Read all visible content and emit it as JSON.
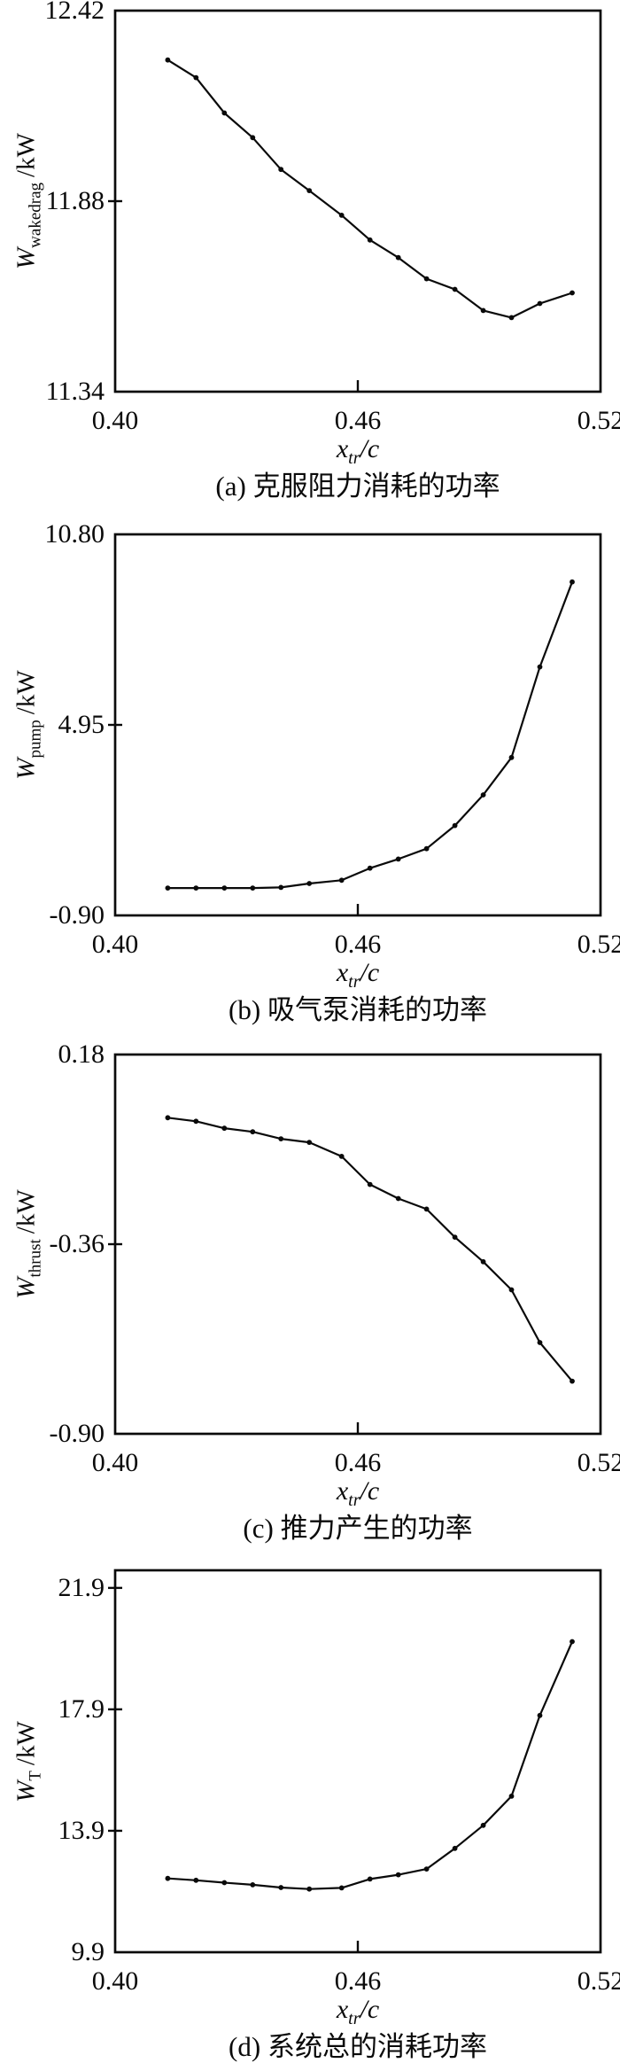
{
  "page": {
    "background": "#ffffff",
    "ink": "#0a0a0a"
  },
  "chart_data": [
    {
      "type": "line",
      "title": "(a) 克服阻力消耗的功率",
      "xlabel": {
        "main": "x",
        "sub": "tr",
        "unit": "/c"
      },
      "ylabel": {
        "main": "W",
        "sub": "wakedrag",
        "unit": "/kW"
      },
      "x": [
        0.413,
        0.42,
        0.427,
        0.434,
        0.441,
        0.448,
        0.456,
        0.463,
        0.47,
        0.477,
        0.484,
        0.491,
        0.498,
        0.505,
        0.513
      ],
      "values": [
        12.28,
        12.23,
        12.13,
        12.06,
        11.97,
        11.91,
        11.84,
        11.77,
        11.72,
        11.66,
        11.63,
        11.57,
        11.55,
        11.59,
        11.62
      ],
      "xlim": [
        0.4,
        0.52
      ],
      "ylim": [
        11.34,
        12.42
      ],
      "xticks": [
        {
          "v": 0.4,
          "label": "0.40"
        },
        {
          "v": 0.46,
          "label": "0.46"
        },
        {
          "v": 0.52,
          "label": "0.52"
        }
      ],
      "yticks": [
        {
          "v": 12.42,
          "label": "12.42"
        },
        {
          "v": 11.88,
          "label": "11.88"
        },
        {
          "v": 11.34,
          "label": "11.34"
        }
      ],
      "grid": false,
      "legend": false,
      "marker": "dot",
      "line_color": "#0a0a0a"
    },
    {
      "type": "line",
      "title": "(b) 吸气泵消耗的功率",
      "xlabel": {
        "main": "x",
        "sub": "tr",
        "unit": "/c"
      },
      "ylabel": {
        "main": "W",
        "sub": "pump",
        "unit": "/kW"
      },
      "x": [
        0.413,
        0.42,
        0.427,
        0.434,
        0.441,
        0.448,
        0.456,
        0.463,
        0.47,
        0.477,
        0.484,
        0.491,
        0.498,
        0.505,
        0.513
      ],
      "values": [
        -0.06,
        -0.06,
        -0.06,
        -0.06,
        -0.04,
        0.08,
        0.18,
        0.55,
        0.83,
        1.15,
        1.86,
        2.8,
        3.95,
        6.73,
        9.34
      ],
      "xlim": [
        0.4,
        0.52
      ],
      "ylim": [
        -0.9,
        10.8
      ],
      "xticks": [
        {
          "v": 0.4,
          "label": "0.40"
        },
        {
          "v": 0.46,
          "label": "0.46"
        },
        {
          "v": 0.52,
          "label": "0.52"
        }
      ],
      "yticks": [
        {
          "v": 10.8,
          "label": "10.80"
        },
        {
          "v": 4.95,
          "label": "4.95"
        },
        {
          "v": -0.9,
          "label": "-0.90"
        }
      ],
      "grid": false,
      "legend": false,
      "marker": "dot",
      "line_color": "#0a0a0a"
    },
    {
      "type": "line",
      "title": "(c) 推力产生的功率",
      "xlabel": {
        "main": "x",
        "sub": "tr",
        "unit": "/c"
      },
      "ylabel": {
        "main": "W",
        "sub": "thrust",
        "unit": "/kW"
      },
      "x": [
        0.413,
        0.42,
        0.427,
        0.434,
        0.441,
        0.448,
        0.456,
        0.463,
        0.47,
        0.477,
        0.484,
        0.491,
        0.498,
        0.505,
        0.513
      ],
      "values": [
        0.0,
        -0.01,
        -0.03,
        -0.04,
        -0.06,
        -0.07,
        -0.11,
        -0.19,
        -0.23,
        -0.26,
        -0.34,
        -0.41,
        -0.49,
        -0.64,
        -0.75
      ],
      "xlim": [
        0.4,
        0.52
      ],
      "ylim": [
        -0.9,
        0.18
      ],
      "xticks": [
        {
          "v": 0.4,
          "label": "0.40"
        },
        {
          "v": 0.46,
          "label": "0.46"
        },
        {
          "v": 0.52,
          "label": "0.52"
        }
      ],
      "yticks": [
        {
          "v": 0.18,
          "label": "0.18"
        },
        {
          "v": -0.36,
          "label": "-0.36"
        },
        {
          "v": -0.9,
          "label": "-0.90"
        }
      ],
      "grid": false,
      "legend": false,
      "marker": "dot",
      "line_color": "#0a0a0a"
    },
    {
      "type": "line",
      "title": "(d) 系统总的消耗功率",
      "xlabel": {
        "main": "x",
        "sub": "tr",
        "unit": "/c"
      },
      "ylabel": {
        "main": "W",
        "sub": "T",
        "unit": "/kW"
      },
      "x": [
        0.413,
        0.42,
        0.427,
        0.434,
        0.441,
        0.448,
        0.456,
        0.463,
        0.47,
        0.477,
        0.484,
        0.491,
        0.498,
        0.505,
        0.513
      ],
      "values": [
        12.33,
        12.27,
        12.19,
        12.12,
        12.03,
        11.98,
        12.02,
        12.31,
        12.45,
        12.64,
        13.32,
        14.08,
        15.04,
        17.7,
        20.13
      ],
      "xlim": [
        0.4,
        0.52
      ],
      "ylim": [
        9.9,
        21.9
      ],
      "xticks": [
        {
          "v": 0.4,
          "label": "0.40"
        },
        {
          "v": 0.46,
          "label": "0.46"
        },
        {
          "v": 0.52,
          "label": "0.52"
        }
      ],
      "yticks": [
        {
          "v": 21.9,
          "label": "21.9"
        },
        {
          "v": 17.9,
          "label": "17.9"
        },
        {
          "v": 13.9,
          "label": "13.9"
        },
        {
          "v": 9.9,
          "label": "9.9"
        }
      ],
      "grid": false,
      "legend": false,
      "marker": "dot",
      "line_color": "#0a0a0a"
    }
  ]
}
